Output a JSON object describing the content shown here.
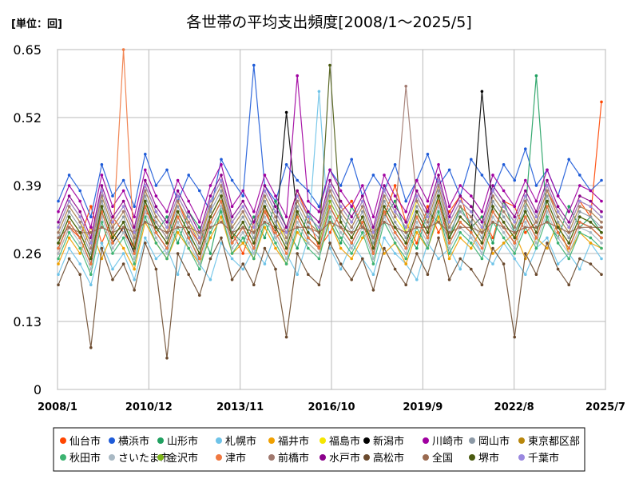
{
  "chart_data": {
    "type": "line",
    "title": "各世帯の平均支出頻度[2008/1～2025/5]",
    "unit_label": "[単位：回]",
    "ylim": [
      0,
      0.65
    ],
    "y_ticks": [
      "0",
      "0.13",
      "0.26",
      "0.39",
      "0.52",
      "0.65"
    ],
    "x_range": [
      "2008-01",
      "2025-07"
    ],
    "x_ticks": [
      "2008/1",
      "2010/12",
      "2013/11",
      "2016/10",
      "2019/9",
      "2022/8",
      "2025/7"
    ],
    "grid": true,
    "legend_position": "bottom",
    "series": [
      {
        "name": "仙台市",
        "color": "#ff4500",
        "values": [
          0.26,
          0.31,
          0.29,
          0.35,
          0.28,
          0.33,
          0.3,
          0.27,
          0.34,
          0.32,
          0.29,
          0.36,
          0.31,
          0.28,
          0.33,
          0.37,
          0.3,
          0.26,
          0.32,
          0.35,
          0.29,
          0.31,
          0.38,
          0.33,
          0.27,
          0.3,
          0.34,
          0.36,
          0.31,
          0.29,
          0.33,
          0.39,
          0.32,
          0.28,
          0.35,
          0.3,
          0.34,
          0.37,
          0.31,
          0.33,
          0.29,
          0.36,
          0.35,
          0.3,
          0.32,
          0.38,
          0.34,
          0.31,
          0.36,
          0.33,
          0.55
        ]
      },
      {
        "name": "横浜市",
        "color": "#1e5bd8",
        "values": [
          0.36,
          0.41,
          0.38,
          0.33,
          0.43,
          0.37,
          0.4,
          0.35,
          0.45,
          0.39,
          0.42,
          0.36,
          0.41,
          0.38,
          0.34,
          0.44,
          0.4,
          0.37,
          0.62,
          0.39,
          0.36,
          0.43,
          0.4,
          0.38,
          0.35,
          0.42,
          0.39,
          0.44,
          0.37,
          0.41,
          0.38,
          0.43,
          0.36,
          0.4,
          0.45,
          0.39,
          0.42,
          0.37,
          0.44,
          0.41,
          0.38,
          0.43,
          0.4,
          0.46,
          0.39,
          0.42,
          0.37,
          0.44,
          0.41,
          0.38,
          0.4
        ]
      },
      {
        "name": "山形市",
        "color": "#20a060",
        "values": [
          0.28,
          0.33,
          0.3,
          0.25,
          0.35,
          0.29,
          0.32,
          0.27,
          0.36,
          0.3,
          0.33,
          0.28,
          0.34,
          0.31,
          0.26,
          0.35,
          0.3,
          0.28,
          0.33,
          0.29,
          0.36,
          0.31,
          0.27,
          0.34,
          0.3,
          0.32,
          0.28,
          0.35,
          0.31,
          0.29,
          0.33,
          0.36,
          0.3,
          0.27,
          0.34,
          0.32,
          0.29,
          0.35,
          0.31,
          0.33,
          0.28,
          0.36,
          0.3,
          0.34,
          0.6,
          0.32,
          0.29,
          0.35,
          0.31,
          0.33,
          0.3
        ]
      },
      {
        "name": "札幌市",
        "color": "#6ec3e8",
        "values": [
          0.22,
          0.27,
          0.24,
          0.2,
          0.28,
          0.23,
          0.26,
          0.21,
          0.29,
          0.25,
          0.27,
          0.22,
          0.3,
          0.24,
          0.21,
          0.28,
          0.25,
          0.23,
          0.27,
          0.24,
          0.3,
          0.26,
          0.22,
          0.29,
          0.57,
          0.27,
          0.23,
          0.28,
          0.25,
          0.22,
          0.29,
          0.26,
          0.24,
          0.21,
          0.28,
          0.25,
          0.27,
          0.23,
          0.3,
          0.26,
          0.24,
          0.28,
          0.25,
          0.22,
          0.27,
          0.29,
          0.24,
          0.26,
          0.23,
          0.28,
          0.25
        ]
      },
      {
        "name": "福井市",
        "color": "#f0a000",
        "values": [
          0.24,
          0.29,
          0.26,
          0.31,
          0.25,
          0.3,
          0.27,
          0.23,
          0.32,
          0.28,
          0.25,
          0.3,
          0.27,
          0.24,
          0.29,
          0.33,
          0.26,
          0.28,
          0.25,
          0.31,
          0.27,
          0.24,
          0.3,
          0.28,
          0.26,
          0.32,
          0.27,
          0.25,
          0.29,
          0.31,
          0.26,
          0.28,
          0.24,
          0.3,
          0.27,
          0.33,
          0.25,
          0.29,
          0.27,
          0.31,
          0.26,
          0.28,
          0.3,
          0.25,
          0.29,
          0.27,
          0.32,
          0.26,
          0.3,
          0.28,
          0.27
        ]
      },
      {
        "name": "福島市",
        "color": "#f5e600",
        "values": [
          0.3,
          0.35,
          0.32,
          0.28,
          0.37,
          0.31,
          0.34,
          0.29,
          0.38,
          0.33,
          0.3,
          0.36,
          0.32,
          0.29,
          0.35,
          0.39,
          0.31,
          0.34,
          0.3,
          0.37,
          0.33,
          0.28,
          0.36,
          0.32,
          0.3,
          0.38,
          0.34,
          0.31,
          0.35,
          0.29,
          0.37,
          0.33,
          0.3,
          0.36,
          0.32,
          0.39,
          0.31,
          0.35,
          0.33,
          0.3,
          0.37,
          0.34,
          0.31,
          0.36,
          0.32,
          0.38,
          0.33,
          0.3,
          0.35,
          0.34,
          0.32
        ]
      },
      {
        "name": "新潟市",
        "color": "#000000",
        "values": [
          0.27,
          0.32,
          0.29,
          0.24,
          0.34,
          0.28,
          0.31,
          0.26,
          0.35,
          0.3,
          0.27,
          0.33,
          0.29,
          0.25,
          0.32,
          0.36,
          0.28,
          0.31,
          0.27,
          0.34,
          0.3,
          0.53,
          0.33,
          0.29,
          0.27,
          0.35,
          0.31,
          0.28,
          0.32,
          0.26,
          0.34,
          0.3,
          0.27,
          0.33,
          0.29,
          0.36,
          0.28,
          0.32,
          0.3,
          0.57,
          0.34,
          0.31,
          0.28,
          0.33,
          0.29,
          0.35,
          0.3,
          0.27,
          0.32,
          0.31,
          0.29
        ]
      },
      {
        "name": "川崎市",
        "color": "#a000a0",
        "values": [
          0.34,
          0.39,
          0.36,
          0.31,
          0.41,
          0.35,
          0.38,
          0.33,
          0.42,
          0.37,
          0.34,
          0.4,
          0.36,
          0.32,
          0.39,
          0.43,
          0.35,
          0.38,
          0.34,
          0.41,
          0.37,
          0.33,
          0.6,
          0.36,
          0.34,
          0.42,
          0.38,
          0.35,
          0.39,
          0.33,
          0.41,
          0.37,
          0.34,
          0.4,
          0.36,
          0.43,
          0.35,
          0.39,
          0.37,
          0.34,
          0.41,
          0.38,
          0.35,
          0.4,
          0.36,
          0.42,
          0.37,
          0.34,
          0.39,
          0.38,
          0.36
        ]
      },
      {
        "name": "岡山市",
        "color": "#8c99a6",
        "values": [
          0.29,
          0.34,
          0.31,
          0.26,
          0.36,
          0.3,
          0.33,
          0.28,
          0.37,
          0.32,
          0.29,
          0.35,
          0.31,
          0.27,
          0.34,
          0.38,
          0.3,
          0.33,
          0.29,
          0.36,
          0.32,
          0.28,
          0.35,
          0.31,
          0.29,
          0.37,
          0.33,
          0.3,
          0.34,
          0.28,
          0.36,
          0.32,
          0.29,
          0.35,
          0.31,
          0.38,
          0.3,
          0.34,
          0.32,
          0.29,
          0.36,
          0.33,
          0.3,
          0.35,
          0.31,
          0.37,
          0.32,
          0.29,
          0.34,
          0.33,
          0.31
        ]
      },
      {
        "name": "東京都区部",
        "color": "#b8860b",
        "values": [
          0.31,
          0.36,
          0.33,
          0.28,
          0.38,
          0.32,
          0.35,
          0.3,
          0.39,
          0.34,
          0.31,
          0.37,
          0.33,
          0.29,
          0.36,
          0.4,
          0.32,
          0.35,
          0.31,
          0.38,
          0.34,
          0.3,
          0.37,
          0.33,
          0.31,
          0.39,
          0.35,
          0.32,
          0.36,
          0.3,
          0.38,
          0.34,
          0.31,
          0.37,
          0.33,
          0.4,
          0.32,
          0.36,
          0.34,
          0.31,
          0.38,
          0.35,
          0.32,
          0.37,
          0.33,
          0.39,
          0.34,
          0.31,
          0.36,
          0.35,
          0.33
        ]
      },
      {
        "name": "秋田市",
        "color": "#3cb371",
        "values": [
          0.25,
          0.3,
          0.27,
          0.22,
          0.32,
          0.26,
          0.29,
          0.24,
          0.33,
          0.28,
          0.25,
          0.31,
          0.27,
          0.23,
          0.3,
          0.34,
          0.26,
          0.29,
          0.25,
          0.32,
          0.28,
          0.24,
          0.31,
          0.27,
          0.25,
          0.33,
          0.29,
          0.26,
          0.3,
          0.24,
          0.32,
          0.28,
          0.25,
          0.31,
          0.27,
          0.34,
          0.26,
          0.3,
          0.28,
          0.25,
          0.32,
          0.29,
          0.26,
          0.31,
          0.27,
          0.33,
          0.28,
          0.25,
          0.3,
          0.29,
          0.27
        ]
      },
      {
        "name": "さいたま市",
        "color": "#a9b9c4",
        "values": [
          0.26,
          0.31,
          0.28,
          0.23,
          0.33,
          0.27,
          0.3,
          0.25,
          0.34,
          0.29,
          0.26,
          0.32,
          0.28,
          0.24,
          0.31,
          0.35,
          0.27,
          0.3,
          0.26,
          0.33,
          0.29,
          0.25,
          0.32,
          0.28,
          0.26,
          0.34,
          0.3,
          0.27,
          0.31,
          0.25,
          0.33,
          0.29,
          0.26,
          0.32,
          0.28,
          0.35,
          0.27,
          0.31,
          0.29,
          0.26,
          0.33,
          0.3,
          0.27,
          0.32,
          0.28,
          0.34,
          0.29,
          0.26,
          0.31,
          0.3,
          0.28
        ]
      },
      {
        "name": "金沢市",
        "color": "#7cb518",
        "values": [
          0.28,
          0.33,
          0.3,
          0.25,
          0.35,
          0.29,
          0.32,
          0.27,
          0.36,
          0.31,
          0.28,
          0.34,
          0.3,
          0.26,
          0.33,
          0.37,
          0.29,
          0.32,
          0.28,
          0.35,
          0.31,
          0.27,
          0.34,
          0.3,
          0.28,
          0.36,
          0.32,
          0.29,
          0.33,
          0.27,
          0.35,
          0.31,
          0.28,
          0.34,
          0.3,
          0.37,
          0.29,
          0.33,
          0.31,
          0.28,
          0.35,
          0.32,
          0.29,
          0.34,
          0.3,
          0.36,
          0.31,
          0.28,
          0.33,
          0.32,
          0.3
        ]
      },
      {
        "name": "津市",
        "color": "#f07840",
        "values": [
          0.27,
          0.32,
          0.29,
          0.24,
          0.34,
          0.28,
          0.65,
          0.26,
          0.35,
          0.3,
          0.27,
          0.33,
          0.29,
          0.25,
          0.32,
          0.36,
          0.28,
          0.31,
          0.27,
          0.34,
          0.3,
          0.26,
          0.33,
          0.29,
          0.27,
          0.35,
          0.31,
          0.28,
          0.32,
          0.26,
          0.34,
          0.3,
          0.27,
          0.33,
          0.29,
          0.36,
          0.28,
          0.32,
          0.3,
          0.27,
          0.34,
          0.31,
          0.28,
          0.33,
          0.29,
          0.35,
          0.3,
          0.27,
          0.32,
          0.31,
          0.29
        ]
      },
      {
        "name": "前橋市",
        "color": "#a0786e",
        "values": [
          0.3,
          0.35,
          0.32,
          0.27,
          0.37,
          0.31,
          0.34,
          0.29,
          0.38,
          0.33,
          0.3,
          0.36,
          0.32,
          0.28,
          0.35,
          0.39,
          0.31,
          0.34,
          0.3,
          0.37,
          0.33,
          0.29,
          0.36,
          0.32,
          0.3,
          0.38,
          0.34,
          0.31,
          0.35,
          0.29,
          0.37,
          0.33,
          0.58,
          0.36,
          0.32,
          0.39,
          0.31,
          0.35,
          0.33,
          0.3,
          0.37,
          0.34,
          0.31,
          0.36,
          0.32,
          0.38,
          0.33,
          0.3,
          0.35,
          0.34,
          0.32
        ]
      },
      {
        "name": "水戸市",
        "color": "#8b008b",
        "values": [
          0.32,
          0.37,
          0.34,
          0.29,
          0.39,
          0.33,
          0.36,
          0.31,
          0.4,
          0.35,
          0.32,
          0.38,
          0.34,
          0.3,
          0.37,
          0.41,
          0.33,
          0.36,
          0.32,
          0.39,
          0.35,
          0.31,
          0.38,
          0.34,
          0.32,
          0.4,
          0.36,
          0.33,
          0.37,
          0.31,
          0.39,
          0.35,
          0.32,
          0.38,
          0.34,
          0.41,
          0.33,
          0.37,
          0.35,
          0.32,
          0.39,
          0.36,
          0.33,
          0.38,
          0.34,
          0.4,
          0.35,
          0.32,
          0.37,
          0.36,
          0.34
        ]
      },
      {
        "name": "高松市",
        "color": "#6b4a2e",
        "values": [
          0.2,
          0.25,
          0.22,
          0.08,
          0.27,
          0.21,
          0.24,
          0.19,
          0.28,
          0.23,
          0.06,
          0.26,
          0.22,
          0.18,
          0.25,
          0.29,
          0.21,
          0.24,
          0.2,
          0.27,
          0.23,
          0.1,
          0.26,
          0.22,
          0.2,
          0.28,
          0.24,
          0.21,
          0.25,
          0.19,
          0.27,
          0.23,
          0.2,
          0.26,
          0.22,
          0.29,
          0.21,
          0.25,
          0.23,
          0.2,
          0.27,
          0.24,
          0.1,
          0.26,
          0.22,
          0.28,
          0.23,
          0.2,
          0.25,
          0.24,
          0.22
        ]
      },
      {
        "name": "全国",
        "color": "#9a6a50",
        "values": [
          0.29,
          0.31,
          0.3,
          0.3,
          0.31,
          0.3,
          0.31,
          0.3,
          0.32,
          0.31,
          0.3,
          0.31,
          0.31,
          0.3,
          0.31,
          0.32,
          0.3,
          0.31,
          0.3,
          0.32,
          0.31,
          0.3,
          0.31,
          0.31,
          0.3,
          0.32,
          0.31,
          0.3,
          0.31,
          0.3,
          0.32,
          0.31,
          0.3,
          0.31,
          0.31,
          0.32,
          0.3,
          0.31,
          0.31,
          0.3,
          0.32,
          0.31,
          0.3,
          0.31,
          0.31,
          0.32,
          0.31,
          0.3,
          0.31,
          0.31,
          0.31
        ]
      },
      {
        "name": "堺市",
        "color": "#4a5a10",
        "values": [
          0.28,
          0.33,
          0.3,
          0.25,
          0.35,
          0.29,
          0.32,
          0.27,
          0.36,
          0.31,
          0.28,
          0.34,
          0.3,
          0.26,
          0.33,
          0.37,
          0.29,
          0.32,
          0.28,
          0.35,
          0.31,
          0.27,
          0.34,
          0.3,
          0.28,
          0.62,
          0.32,
          0.29,
          0.33,
          0.27,
          0.35,
          0.31,
          0.28,
          0.34,
          0.3,
          0.37,
          0.29,
          0.33,
          0.31,
          0.28,
          0.35,
          0.32,
          0.29,
          0.34,
          0.3,
          0.36,
          0.31,
          0.28,
          0.33,
          0.32,
          0.3
        ]
      },
      {
        "name": "千葉市",
        "color": "#9a88e0",
        "values": [
          0.31,
          0.36,
          0.33,
          0.28,
          0.38,
          0.32,
          0.35,
          0.3,
          0.39,
          0.34,
          0.31,
          0.37,
          0.33,
          0.29,
          0.36,
          0.4,
          0.32,
          0.35,
          0.31,
          0.38,
          0.34,
          0.3,
          0.37,
          0.33,
          0.31,
          0.39,
          0.35,
          0.32,
          0.36,
          0.3,
          0.38,
          0.34,
          0.31,
          0.37,
          0.33,
          0.4,
          0.32,
          0.36,
          0.34,
          0.31,
          0.38,
          0.35,
          0.32,
          0.37,
          0.33,
          0.39,
          0.34,
          0.31,
          0.36,
          0.35,
          0.33
        ]
      }
    ]
  }
}
